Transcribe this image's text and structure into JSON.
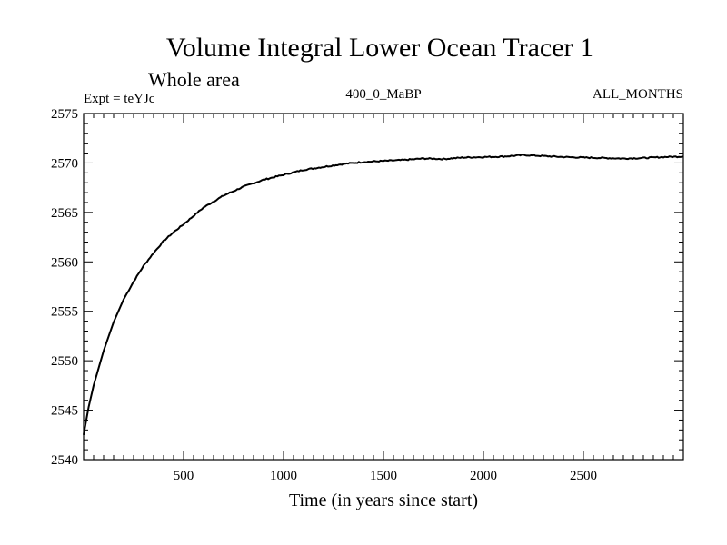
{
  "chart_data": {
    "type": "line",
    "title": "Volume Integral Lower Ocean Tracer 1",
    "subtitle": "Whole area",
    "expt_label": "Expt = teYJc",
    "run_label": "400_0_MaBP",
    "months_label": "ALL_MONTHS",
    "xlabel": "Time (in years since start)",
    "ylabel": "",
    "xlim": [
      0,
      3000
    ],
    "ylim": [
      2540,
      2575
    ],
    "x_ticks": [
      500,
      1000,
      1500,
      2000,
      2500
    ],
    "x_tick_labels": [
      "500",
      "1000",
      "1500",
      "2000",
      "2500"
    ],
    "y_ticks": [
      2540,
      2545,
      2550,
      2555,
      2560,
      2565,
      2570,
      2575
    ],
    "y_tick_labels": [
      "2540",
      "2545",
      "2550",
      "2555",
      "2560",
      "2565",
      "2570",
      "2575"
    ],
    "grid": false,
    "series": [
      {
        "name": "Lower Ocean Tracer 1",
        "color": "#000000",
        "x": [
          0,
          25,
          50,
          100,
          150,
          200,
          250,
          300,
          350,
          400,
          450,
          500,
          600,
          700,
          800,
          900,
          1000,
          1100,
          1200,
          1300,
          1400,
          1500,
          1600,
          1700,
          1800,
          1900,
          2000,
          2100,
          2200,
          2300,
          2400,
          2500,
          2600,
          2700,
          2800,
          2900,
          3000
        ],
        "y": [
          2542.5,
          2545.3,
          2547.5,
          2551.0,
          2553.9,
          2556.2,
          2558.0,
          2559.6,
          2560.9,
          2562.1,
          2563.0,
          2563.8,
          2565.5,
          2566.7,
          2567.6,
          2568.3,
          2568.8,
          2569.3,
          2569.6,
          2569.9,
          2570.1,
          2570.2,
          2570.3,
          2570.45,
          2570.4,
          2570.55,
          2570.6,
          2570.65,
          2570.8,
          2570.7,
          2570.6,
          2570.55,
          2570.5,
          2570.45,
          2570.5,
          2570.6,
          2570.65
        ]
      }
    ]
  }
}
